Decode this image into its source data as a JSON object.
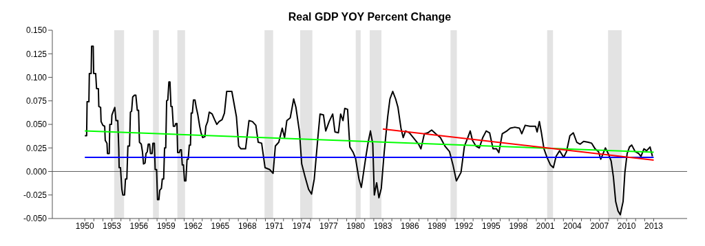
{
  "chart_data": {
    "type": "line",
    "title": "Real GDP YOY Percent Change",
    "xlim": [
      1946.4,
      2016.7
    ],
    "xticks": [
      1950,
      {
        "value": 1951,
        "label": null
      },
      {
        "value": 1952,
        "label": null
      },
      1953,
      {
        "value": 1954,
        "label": null
      },
      {
        "value": 1955,
        "label": null
      },
      1956,
      {
        "value": 1957,
        "label": null
      },
      {
        "value": 1958,
        "label": null
      },
      1959,
      {
        "value": 1960,
        "label": null
      },
      {
        "value": 1961,
        "label": null
      },
      1962,
      {
        "value": 1963,
        "label": null
      },
      {
        "value": 1964,
        "label": null
      },
      1965,
      {
        "value": 1966,
        "label": null
      },
      {
        "value": 1967,
        "label": null
      },
      1968,
      {
        "value": 1969,
        "label": null
      },
      {
        "value": 1970,
        "label": null
      },
      1971,
      {
        "value": 1972,
        "label": null
      },
      {
        "value": 1973,
        "label": null
      },
      1974,
      {
        "value": 1975,
        "label": null
      },
      {
        "value": 1976,
        "label": null
      },
      1977,
      {
        "value": 1978,
        "label": null
      },
      {
        "value": 1979,
        "label": null
      },
      1980,
      {
        "value": 1981,
        "label": null
      },
      {
        "value": 1982,
        "label": null
      },
      1983,
      {
        "value": 1984,
        "label": null
      },
      {
        "value": 1985,
        "label": null
      },
      1986,
      {
        "value": 1987,
        "label": null
      },
      {
        "value": 1988,
        "label": null
      },
      1989,
      {
        "value": 1990,
        "label": null
      },
      {
        "value": 1991,
        "label": null
      },
      1992,
      {
        "value": 1993,
        "label": null
      },
      {
        "value": 1994,
        "label": null
      },
      1995,
      {
        "value": 1996,
        "label": null
      },
      {
        "value": 1997,
        "label": null
      },
      1998,
      {
        "value": 1999,
        "label": null
      },
      {
        "value": 2000,
        "label": null
      },
      2001,
      {
        "value": 2002,
        "label": null
      },
      {
        "value": 2003,
        "label": null
      },
      2004,
      {
        "value": 2005,
        "label": null
      },
      {
        "value": 2006,
        "label": null
      },
      2007,
      {
        "value": 2008,
        "label": null
      },
      {
        "value": 2009,
        "label": null
      },
      2010,
      {
        "value": 2011,
        "label": null
      },
      {
        "value": 2012,
        "label": null
      },
      2013
    ],
    "ylim": [
      -0.05,
      0.15
    ],
    "yticks": [
      {
        "value": -0.05,
        "label": "-0.050"
      },
      {
        "value": -0.025,
        "label": "-0.025"
      },
      {
        "value": 0,
        "label": "0.000"
      },
      {
        "value": 0.025,
        "label": "0.025"
      },
      {
        "value": 0.05,
        "label": "0.050"
      },
      {
        "value": 0.075,
        "label": "0.075"
      },
      {
        "value": 0.1,
        "label": "0.100"
      },
      {
        "value": 0.125,
        "label": "0.125"
      },
      {
        "value": 0.15,
        "label": "0.150"
      }
    ],
    "series": [
      {
        "color": "#000000",
        "x": [
          1950.0,
          1950.2,
          1950.25,
          1950.45,
          1950.5,
          1950.7,
          1950.75,
          1950.93,
          1950.98,
          1951.2,
          1951.3,
          1951.5,
          1951.55,
          1951.75,
          1951.8,
          1952.0,
          1952.2,
          1952.26,
          1952.45,
          1952.51,
          1952.7,
          1952.77,
          1952.95,
          1953.0,
          1953.2,
          1953.32,
          1953.45,
          1953.65,
          1953.76,
          1953.8,
          1953.95,
          1954.1,
          1954.21,
          1954.4,
          1954.5,
          1954.65,
          1954.77,
          1954.95,
          1955.05,
          1955.18,
          1955.3,
          1955.48,
          1955.65,
          1955.81,
          1955.95,
          1956.05,
          1956.25,
          1956.38,
          1956.5,
          1956.67,
          1956.77,
          1956.92,
          1957.02,
          1957.17,
          1957.27,
          1957.45,
          1957.54,
          1957.7,
          1957.79,
          1957.95,
          1958.05,
          1958.2,
          1958.3,
          1958.48,
          1958.58,
          1958.73,
          1958.83,
          1958.96,
          1959.06,
          1959.19,
          1959.31,
          1959.43,
          1959.54,
          1959.67,
          1959.8,
          1959.97,
          1960.08,
          1960.2,
          1960.28,
          1960.46,
          1960.56,
          1960.69,
          1960.79,
          1960.92,
          1961.04,
          1961.19,
          1961.32,
          1961.45,
          1961.57,
          1961.7,
          1961.78,
          1961.91,
          1962.03,
          1962.2,
          1962.34,
          1962.52,
          1962.72,
          1962.87,
          1963.05,
          1963.3,
          1963.4,
          1963.6,
          1963.78,
          1964.1,
          1964.37,
          1964.62,
          1964.87,
          1965.2,
          1965.46,
          1965.71,
          1966.28,
          1966.79,
          1967.04,
          1967.29,
          1967.8,
          1968.18,
          1968.56,
          1968.94,
          1969.2,
          1969.58,
          1969.96,
          1970.47,
          1970.85,
          1971.1,
          1971.48,
          1971.86,
          1972.12,
          1972.37,
          1972.75,
          1973.13,
          1973.38,
          1973.77,
          1974.02,
          1974.4,
          1974.78,
          1975.11,
          1975.41,
          1975.8,
          1976.05,
          1976.43,
          1976.68,
          1977.06,
          1977.45,
          1977.7,
          1978.08,
          1978.33,
          1978.59,
          1978.79,
          1979.1,
          1979.35,
          1979.73,
          1979.98,
          1980.36,
          1980.62,
          1980.87,
          1981.13,
          1981.38,
          1981.63,
          1981.89,
          1982.06,
          1982.32,
          1982.57,
          1982.83,
          1983.16,
          1983.54,
          1983.79,
          1984.1,
          1984.42,
          1984.68,
          1985.01,
          1985.26,
          1985.52,
          1985.95,
          1986.46,
          1986.96,
          1987.22,
          1987.6,
          1987.98,
          1988.41,
          1988.87,
          1989.38,
          1989.88,
          1990.39,
          1990.77,
          1991.15,
          1991.66,
          1992.04,
          1992.42,
          1992.68,
          1992.93,
          1993.31,
          1993.69,
          1994.07,
          1994.45,
          1994.83,
          1995.21,
          1995.6,
          1995.85,
          1996.23,
          1996.74,
          1997.12,
          1997.63,
          1998.13,
          1998.39,
          1998.77,
          1999.28,
          1999.91,
          2000.09,
          2000.34,
          2000.55,
          2000.85,
          2001.18,
          2001.56,
          2001.89,
          2002.19,
          2002.58,
          2003.03,
          2003.34,
          2003.72,
          2004.1,
          2004.48,
          2004.86,
          2005.24,
          2005.75,
          2006.13,
          2006.51,
          2006.89,
          2007.14,
          2007.4,
          2007.65,
          2007.96,
          2008.29,
          2008.54,
          2008.79,
          2009.05,
          2009.3,
          2009.61,
          2009.81,
          2010.06,
          2010.32,
          2010.57,
          2010.95,
          2011.33,
          2011.59,
          2011.92,
          2012.22,
          2012.6,
          2012.86
        ],
        "values": [
          0.038,
          0.038,
          0.074,
          0.074,
          0.104,
          0.104,
          0.133,
          0.133,
          0.104,
          0.104,
          0.088,
          0.088,
          0.069,
          0.068,
          0.053,
          0.049,
          0.048,
          0.033,
          0.03,
          0.019,
          0.019,
          0.05,
          0.05,
          0.06,
          0.065,
          0.068,
          0.054,
          0.054,
          0.024,
          0.004,
          0.004,
          -0.019,
          -0.025,
          -0.025,
          -0.008,
          -0.008,
          0.027,
          0.027,
          0.063,
          0.064,
          0.079,
          0.081,
          0.081,
          0.065,
          0.065,
          0.031,
          0.029,
          0.021,
          0.008,
          0.009,
          0.019,
          0.021,
          0.029,
          0.029,
          0.019,
          0.019,
          0.03,
          0.03,
          0.002,
          0.002,
          -0.03,
          -0.03,
          -0.02,
          -0.018,
          -0.008,
          -0.008,
          0.025,
          0.025,
          0.075,
          0.076,
          0.095,
          0.095,
          0.069,
          0.069,
          0.048,
          0.048,
          0.051,
          0.051,
          0.02,
          0.02,
          0.023,
          0.023,
          0.007,
          0.007,
          -0.01,
          -0.01,
          0.013,
          0.013,
          0.028,
          0.028,
          0.062,
          0.062,
          0.076,
          0.076,
          0.068,
          0.06,
          0.048,
          0.041,
          0.036,
          0.037,
          0.048,
          0.053,
          0.063,
          0.061,
          0.055,
          0.05,
          0.053,
          0.055,
          0.062,
          0.085,
          0.085,
          0.058,
          0.027,
          0.024,
          0.024,
          0.054,
          0.053,
          0.049,
          0.031,
          0.03,
          0.004,
          0.002,
          -0.002,
          0.027,
          0.031,
          0.046,
          0.036,
          0.054,
          0.057,
          0.077,
          0.068,
          0.042,
          0.008,
          -0.006,
          -0.019,
          -0.024,
          -0.008,
          0.035,
          0.061,
          0.06,
          0.043,
          0.053,
          0.061,
          0.042,
          0.041,
          0.061,
          0.054,
          0.067,
          0.066,
          0.026,
          0.02,
          0.014,
          -0.008,
          -0.017,
          -0.001,
          0.016,
          0.031,
          0.043,
          0.029,
          -0.025,
          -0.012,
          -0.028,
          -0.018,
          0.021,
          0.058,
          0.077,
          0.085,
          0.077,
          0.068,
          0.046,
          0.036,
          0.043,
          0.041,
          0.035,
          0.029,
          0.024,
          0.04,
          0.041,
          0.044,
          0.04,
          0.036,
          0.027,
          0.021,
          0.007,
          -0.01,
          -0.001,
          0.027,
          0.036,
          0.043,
          0.033,
          0.027,
          0.025,
          0.036,
          0.043,
          0.041,
          0.024,
          0.024,
          0.02,
          0.04,
          0.043,
          0.046,
          0.047,
          0.046,
          0.04,
          0.049,
          0.048,
          0.048,
          0.042,
          0.053,
          0.042,
          0.024,
          0.015,
          0.007,
          0.004,
          0.016,
          0.022,
          0.015,
          0.021,
          0.038,
          0.041,
          0.031,
          0.029,
          0.032,
          0.031,
          0.03,
          0.024,
          0.021,
          0.013,
          0.019,
          0.025,
          0.019,
          0.011,
          -0.006,
          -0.032,
          -0.042,
          -0.046,
          -0.032,
          -0.001,
          0.019,
          0.026,
          0.028,
          0.021,
          0.019,
          0.016,
          0.024,
          0.022,
          0.026,
          0.016
        ]
      },
      {
        "color": "#0000ff",
        "x": [
          1950,
          2013
        ],
        "values": [
          0.015,
          0.015
        ]
      },
      {
        "color": "#00ff00",
        "x": [
          1950,
          2013
        ],
        "values": [
          0.043,
          0.0205
        ]
      },
      {
        "color": "#ff0000",
        "x": [
          1983,
          2013
        ],
        "values": [
          0.045,
          0.012
        ]
      }
    ],
    "ref_lines": [
      {
        "axis": "y",
        "value": 0,
        "color": "#606060"
      }
    ],
    "bands": [
      {
        "axis": "x",
        "from": 1953.25,
        "to": 1954.35,
        "color": "#e3e3e3"
      },
      {
        "axis": "x",
        "from": 1957.55,
        "to": 1958.2,
        "color": "#e3e3e3"
      },
      {
        "axis": "x",
        "from": 1960.25,
        "to": 1961.1,
        "color": "#e3e3e3"
      },
      {
        "axis": "x",
        "from": 1969.9,
        "to": 1970.85,
        "color": "#e3e3e3"
      },
      {
        "axis": "x",
        "from": 1973.85,
        "to": 1975.2,
        "color": "#e3e3e3"
      },
      {
        "axis": "x",
        "from": 1980.0,
        "to": 1980.55,
        "color": "#e3e3e3"
      },
      {
        "axis": "x",
        "from": 1981.55,
        "to": 1982.85,
        "color": "#e3e3e3"
      },
      {
        "axis": "x",
        "from": 1990.5,
        "to": 1991.2,
        "color": "#e3e3e3"
      },
      {
        "axis": "x",
        "from": 2001.2,
        "to": 2001.85,
        "color": "#e3e3e3"
      },
      {
        "axis": "x",
        "from": 2007.95,
        "to": 2009.45,
        "color": "#e3e3e3"
      }
    ]
  }
}
